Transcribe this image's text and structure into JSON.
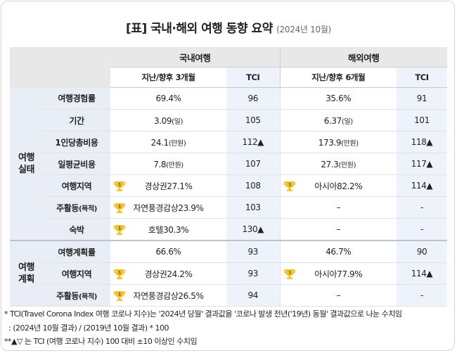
{
  "title": "[표] 국내·해외 여행 동향 요약",
  "subtitle": "(2024년 10월)",
  "header": {
    "domestic": "국내여행",
    "overseas": "해외여행",
    "domestic_sub": "지난/향후 3개월",
    "overseas_sub": "지난/향후 6개월",
    "tci": "TCI"
  },
  "groups": {
    "actual_line1": "여행",
    "actual_line2": "실태",
    "plan_line1": "여행",
    "plan_line2": "계획"
  },
  "rows": [
    {
      "label": "여행경험률",
      "label_unit": "",
      "dom": "69.4%",
      "dom_unit": "",
      "dom_medal": false,
      "dom_tci": "96",
      "ov": "35.6%",
      "ov_unit": "",
      "ov_medal": false,
      "ov_tci": "91"
    },
    {
      "label": "기간",
      "label_unit": "",
      "dom": "3.09",
      "dom_unit": "(일)",
      "dom_medal": false,
      "dom_tci": "105",
      "ov": "6.37",
      "ov_unit": "(일)",
      "ov_medal": false,
      "ov_tci": "101"
    },
    {
      "label": "1인당총비용",
      "label_unit": "",
      "dom": "24.1",
      "dom_unit": "(만원)",
      "dom_medal": false,
      "dom_tci": "112▲",
      "ov": "173.9",
      "ov_unit": "(만원)",
      "ov_medal": false,
      "ov_tci": "118▲"
    },
    {
      "label": "일평균비용",
      "label_unit": "",
      "dom": "7.8",
      "dom_unit": "(만원)",
      "dom_medal": false,
      "dom_tci": "107",
      "ov": "27.3",
      "ov_unit": "(만원)",
      "ov_medal": false,
      "ov_tci": "117▲"
    },
    {
      "label": "여행지역",
      "label_unit": "",
      "dom": "경상권27.1%",
      "dom_unit": "",
      "dom_medal": true,
      "dom_tci": "108",
      "ov": "아시아82.2%",
      "ov_unit": "",
      "ov_medal": true,
      "ov_tci": "114▲"
    },
    {
      "label": "주활동",
      "label_unit": "(목적)",
      "dom": "자연풍경감상23.9%",
      "dom_unit": "",
      "dom_medal": true,
      "dom_tci": "103",
      "ov": "–",
      "ov_unit": "",
      "ov_medal": false,
      "ov_tci": "-"
    },
    {
      "label": "숙박",
      "label_unit": "",
      "dom": "호텔30.3%",
      "dom_unit": "",
      "dom_medal": true,
      "dom_tci": "130▲",
      "ov": "–",
      "ov_unit": "",
      "ov_medal": false,
      "ov_tci": "-"
    },
    {
      "label": "여행계획률",
      "label_unit": "",
      "dom": "66.6%",
      "dom_unit": "",
      "dom_medal": false,
      "dom_tci": "93",
      "ov": "46.7%",
      "ov_unit": "",
      "ov_medal": false,
      "ov_tci": "90"
    },
    {
      "label": "여행지역",
      "label_unit": "",
      "dom": "경상권24.2%",
      "dom_unit": "",
      "dom_medal": true,
      "dom_tci": "93",
      "ov": "아시아77.9%",
      "ov_unit": "",
      "ov_medal": true,
      "ov_tci": "114▲"
    },
    {
      "label": "주활동",
      "label_unit": "(목적)",
      "dom": "자연풍경감상26.5%",
      "dom_unit": "",
      "dom_medal": true,
      "dom_tci": "94",
      "ov": "–",
      "ov_unit": "",
      "ov_medal": false,
      "ov_tci": "-"
    }
  ],
  "medal_number": "1",
  "notes": {
    "line1": "* TCI(Travel Corona Index 여행 코로나 지수)는 '2024년 당월' 결과값을 '코로나 발생 전년('19년) 동월' 결과값으로 나눈 수치임",
    "line2": ": (2024년 10월 결과) / (2019년 10월 결과) * 100",
    "line3": "**▲▽ 는 TCI (여행 코로나 지수) 100 대비 ±10 이상인 수치임"
  },
  "colors": {
    "header_gray": "#e8e8e8",
    "label_blue": "#e9eef6",
    "tci_blue": "#eef3fb",
    "medal_gold": "#f2c12e"
  }
}
